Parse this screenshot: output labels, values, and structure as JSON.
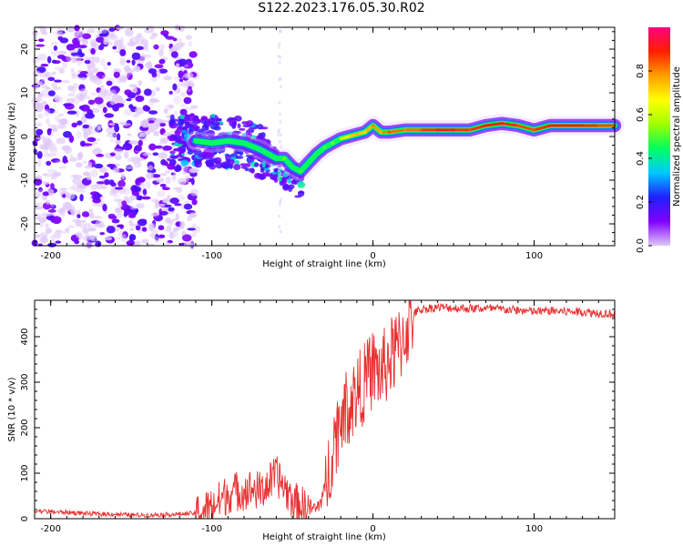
{
  "figure_title": "S122.2023.176.05.30.R02",
  "chart_data": [
    {
      "type": "heatmap",
      "title": "S122.2023.176.05.30.R02",
      "xlabel": "Height of straight line (km)",
      "ylabel": "Frequency (Hz)",
      "xlim": [
        -210,
        150
      ],
      "ylim": [
        -25,
        25
      ],
      "xticks": [
        -200,
        -100,
        0,
        100
      ],
      "yticks": [
        -20,
        -10,
        0,
        10,
        20
      ],
      "colorbar": {
        "label": "Normalized spectral amplitude",
        "range": [
          0,
          1
        ],
        "ticks": [
          0.0,
          0.2,
          0.4,
          0.6,
          0.8
        ],
        "colormap": [
          "#e0c8f8",
          "#8000ff",
          "#2020ff",
          "#00c8ff",
          "#00ff60",
          "#a0ff00",
          "#ffff00",
          "#ffa000",
          "#ff2000",
          "#ff0080"
        ]
      },
      "ridge": {
        "description": "dominant frequency track vs height",
        "x": [
          -110,
          -100,
          -90,
          -80,
          -70,
          -60,
          -55,
          -50,
          -45,
          -40,
          -35,
          -30,
          -25,
          -20,
          -15,
          -10,
          -5,
          0,
          5,
          10,
          20,
          30,
          40,
          50,
          60,
          70,
          80,
          90,
          100,
          110,
          120,
          130,
          140,
          150
        ],
        "y": [
          -1,
          -1.5,
          -1,
          -1.5,
          -3,
          -5,
          -5,
          -7,
          -8,
          -6,
          -4,
          -2.5,
          -1.5,
          -0.5,
          0,
          0.5,
          1,
          2.5,
          1,
          1,
          1.5,
          1.5,
          1.5,
          1.5,
          1.5,
          2.5,
          3,
          2.5,
          1.5,
          2.5,
          2.5,
          2.5,
          2.5,
          2.5
        ],
        "amplitude": [
          0.45,
          0.4,
          0.45,
          0.4,
          0.4,
          0.45,
          0.55,
          0.45,
          0.5,
          0.45,
          0.45,
          0.5,
          0.55,
          0.6,
          0.7,
          0.75,
          0.7,
          0.8,
          0.75,
          0.85,
          0.8,
          0.85,
          0.9,
          0.9,
          0.85,
          0.9,
          0.9,
          0.85,
          0.85,
          0.9,
          0.9,
          0.9,
          0.85,
          0.85
        ]
      }
    },
    {
      "type": "line",
      "xlabel": "Height of straight line (km)",
      "ylabel": "SNR (10 * v/v)",
      "xlim": [
        -210,
        150
      ],
      "ylim": [
        0,
        480
      ],
      "xticks": [
        -200,
        -100,
        0,
        100
      ],
      "yticks": [
        0,
        100,
        200,
        300,
        400
      ],
      "series": [
        {
          "name": "SNR",
          "color": "#e83030",
          "x": [
            -210,
            -200,
            -190,
            -180,
            -170,
            -160,
            -150,
            -140,
            -130,
            -120,
            -110,
            -105,
            -100,
            -95,
            -90,
            -85,
            -80,
            -75,
            -70,
            -65,
            -60,
            -55,
            -50,
            -45,
            -40,
            -35,
            -30,
            -25,
            -20,
            -15,
            -10,
            -5,
            0,
            5,
            10,
            15,
            20,
            25,
            30,
            40,
            50,
            60,
            70,
            80,
            90,
            100,
            110,
            120,
            130,
            140,
            150
          ],
          "y": [
            18,
            15,
            14,
            12,
            10,
            10,
            8,
            8,
            9,
            10,
            12,
            18,
            25,
            40,
            55,
            60,
            62,
            65,
            60,
            75,
            95,
            70,
            40,
            28,
            25,
            20,
            60,
            160,
            225,
            250,
            275,
            300,
            330,
            320,
            350,
            370,
            410,
            450,
            460,
            465,
            463,
            462,
            462,
            460,
            458,
            455,
            457,
            455,
            455,
            452,
            450
          ]
        }
      ]
    }
  ]
}
